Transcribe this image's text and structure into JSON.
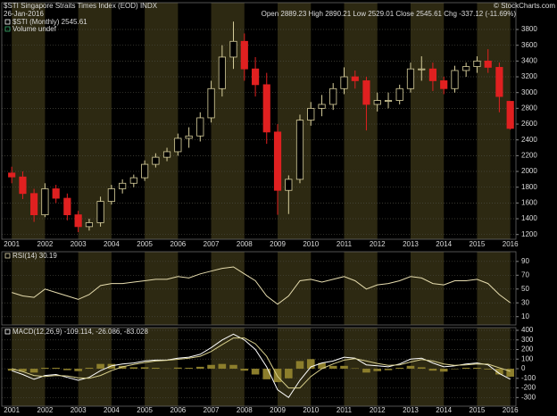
{
  "chart_data": [
    {
      "type": "candlestick",
      "title": "$STI Singapore Straits Times Index (EOD) INDX",
      "subtitle": "26-Jan-2016",
      "info": "Open 2889.23 High 2890.21 Low 2529.01 Close 2545.61 Chg -337.12 (-11.69%)",
      "credit": "© StockCharts.com",
      "legend": [
        "$STI (Monthly) 2545.61",
        "Volume undef"
      ],
      "up_color": "#d8cf9c",
      "down_color": "#e02020",
      "x": [
        2001,
        2001.33,
        2001.67,
        2002,
        2002.33,
        2002.67,
        2003,
        2003.33,
        2003.67,
        2004,
        2004.33,
        2004.67,
        2005,
        2005.33,
        2005.67,
        2006,
        2006.33,
        2006.67,
        2007,
        2007.33,
        2007.67,
        2008,
        2008.33,
        2008.67,
        2009,
        2009.33,
        2009.67,
        2010,
        2010.33,
        2010.67,
        2011,
        2011.33,
        2011.67,
        2012,
        2012.33,
        2012.67,
        2013,
        2013.33,
        2013.67,
        2014,
        2014.33,
        2014.67,
        2015,
        2015.33,
        2015.67,
        2016
      ],
      "open": [
        1980,
        1930,
        1720,
        1450,
        1780,
        1660,
        1450,
        1300,
        1350,
        1620,
        1780,
        1850,
        1920,
        2090,
        2180,
        2250,
        2420,
        2450,
        2680,
        3050,
        3450,
        3650,
        3300,
        3100,
        2500,
        1760,
        1900,
        2650,
        2800,
        2850,
        3050,
        3200,
        3150,
        2850,
        2900,
        2900,
        3050,
        3300,
        3300,
        3150,
        3050,
        3280,
        3330,
        3400,
        3320,
        2889.23
      ],
      "high": [
        2060,
        2000,
        1780,
        1850,
        1830,
        1720,
        1500,
        1400,
        1680,
        1830,
        1900,
        1960,
        2140,
        2230,
        2300,
        2480,
        2560,
        2750,
        3150,
        3600,
        3900,
        3750,
        3450,
        3250,
        2600,
        1950,
        2720,
        2880,
        2970,
        3120,
        3320,
        3280,
        3200,
        3000,
        3000,
        3100,
        3380,
        3460,
        3380,
        3200,
        3340,
        3380,
        3460,
        3550,
        3380,
        2890.21
      ],
      "low": [
        1850,
        1650,
        1360,
        1420,
        1600,
        1380,
        1230,
        1250,
        1300,
        1580,
        1720,
        1800,
        1880,
        2050,
        2130,
        2200,
        2300,
        2380,
        2620,
        2950,
        3300,
        3150,
        2950,
        2350,
        1450,
        1460,
        1850,
        2580,
        2700,
        2780,
        2980,
        3050,
        2520,
        2760,
        2800,
        2850,
        3000,
        3150,
        3020,
        2980,
        3000,
        3200,
        3250,
        3250,
        2750,
        2529.01
      ],
      "close": [
        1930,
        1720,
        1450,
        1780,
        1660,
        1450,
        1300,
        1350,
        1620,
        1780,
        1850,
        1920,
        2090,
        2180,
        2250,
        2420,
        2450,
        2680,
        3050,
        3450,
        3650,
        3300,
        3100,
        2500,
        1760,
        1900,
        2650,
        2800,
        2850,
        3050,
        3200,
        3150,
        2850,
        2900,
        2900,
        3050,
        3300,
        3300,
        3150,
        3050,
        3280,
        3330,
        3400,
        3320,
        2950,
        2545.61
      ],
      "xlim": [
        2000.7,
        2016.17
      ],
      "xticks": [
        2001,
        2002,
        2003,
        2004,
        2005,
        2006,
        2007,
        2008,
        2009,
        2010,
        2011,
        2012,
        2013,
        2014,
        2015,
        2016
      ],
      "ylim": [
        1140,
        4140
      ],
      "yticks": [
        1200,
        1400,
        1600,
        1800,
        2000,
        2200,
        2400,
        2600,
        2800,
        3000,
        3200,
        3400,
        3600,
        3800
      ],
      "grid": true
    },
    {
      "type": "line",
      "series": [
        {
          "name": "RSI(14) 30.19",
          "color": "#e6dcae",
          "values": [
            45,
            40,
            38,
            50,
            45,
            40,
            35,
            42,
            55,
            58,
            58,
            60,
            62,
            64,
            64,
            68,
            66,
            72,
            76,
            80,
            82,
            72,
            62,
            40,
            28,
            40,
            62,
            64,
            60,
            64,
            68,
            62,
            50,
            56,
            58,
            62,
            68,
            66,
            58,
            56,
            62,
            62,
            64,
            58,
            42,
            30.19
          ]
        }
      ],
      "ylim": [
        -2,
        104
      ],
      "yticks": [
        10,
        30,
        50,
        70,
        90
      ],
      "grid": true
    },
    {
      "type": "line",
      "series": [
        {
          "name": "MACD(12,26,9) -109.114, -26.086, -83.028",
          "color": "#ffffff",
          "values": [
            -20,
            -60,
            -110,
            -70,
            -60,
            -90,
            -120,
            -90,
            -20,
            30,
            50,
            60,
            80,
            90,
            90,
            110,
            120,
            150,
            220,
            300,
            360,
            300,
            200,
            20,
            -220,
            -300,
            -120,
            20,
            60,
            80,
            120,
            110,
            40,
            30,
            20,
            50,
            100,
            110,
            60,
            20,
            30,
            50,
            60,
            40,
            -50,
            -109.114
          ]
        },
        {
          "color": "#d8cf8c",
          "values": [
            0,
            -30,
            -70,
            -80,
            -70,
            -75,
            -95,
            -100,
            -70,
            -20,
            20,
            45,
            65,
            80,
            88,
            98,
            110,
            130,
            180,
            250,
            320,
            320,
            260,
            130,
            -80,
            -200,
            -200,
            -80,
            0,
            50,
            90,
            105,
            80,
            55,
            35,
            40,
            70,
            95,
            80,
            50,
            35,
            40,
            50,
            48,
            10,
            -26.086
          ]
        },
        {
          "color": "#8c7e2c",
          "style": "histogram",
          "values": [
            -20,
            -30,
            -40,
            10,
            10,
            -15,
            -25,
            10,
            50,
            50,
            30,
            15,
            15,
            10,
            2,
            12,
            10,
            20,
            40,
            50,
            40,
            -20,
            -60,
            -110,
            -140,
            -100,
            80,
            100,
            60,
            30,
            30,
            5,
            -40,
            -25,
            -15,
            10,
            30,
            15,
            -20,
            -30,
            -5,
            10,
            10,
            -8,
            -60,
            -83.028
          ]
        }
      ],
      "ylim": [
        -390,
        428
      ],
      "yticks": [
        -300,
        -200,
        -100,
        0,
        100,
        200,
        300,
        400
      ],
      "grid": true
    }
  ]
}
